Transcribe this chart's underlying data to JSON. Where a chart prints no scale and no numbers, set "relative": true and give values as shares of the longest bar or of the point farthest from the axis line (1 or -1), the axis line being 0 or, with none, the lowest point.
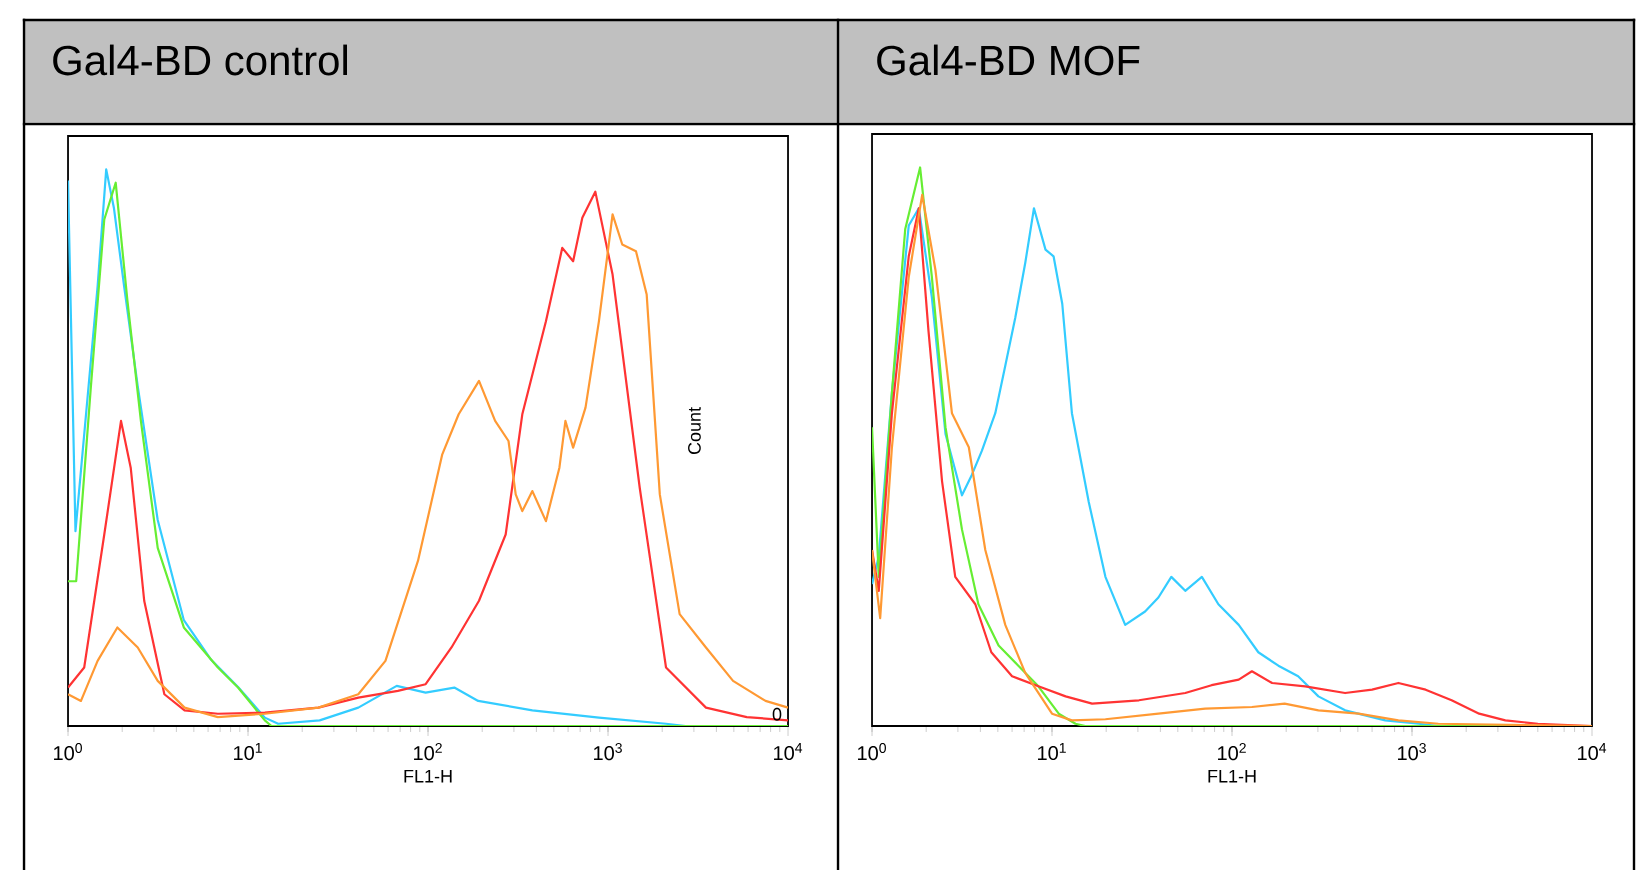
{
  "chart_data": [
    {
      "type": "line",
      "title": "Gal4-BD control",
      "xlabel": "FL1-H",
      "ylabel": "Count",
      "annotations": [
        "0"
      ],
      "relative": true,
      "log": "x",
      "xlim": [
        1,
        10000
      ],
      "xticks": [
        {
          "value": 1,
          "label": "10$^{0}$"
        },
        {
          "value": 10,
          "label": "10$^{1}$"
        },
        {
          "value": 100,
          "label": "10$^{2}$"
        },
        {
          "value": 1000,
          "label": "10$^{3}$"
        },
        {
          "value": 10000,
          "label": "10$^{4}$"
        }
      ],
      "series": [
        {
          "color": "#33ccff",
          "x": [
            1,
            1.1,
            1.46,
            1.63,
            1.8,
            2.05,
            2.44,
            3.15,
            4.4,
            6.2,
            8.8,
            12.4,
            14.7,
            25,
            41,
            67,
            97,
            140,
            190,
            380,
            890,
            2100,
            2700,
            10000
          ],
          "values": [
            0.98,
            0.35,
            0.79,
            1.0,
            0.93,
            0.79,
            0.61,
            0.37,
            0.19,
            0.12,
            0.07,
            0.015,
            0.004,
            0.01,
            0.033,
            0.072,
            0.06,
            0.069,
            0.045,
            0.028,
            0.015,
            0.004,
            0,
            0
          ]
        },
        {
          "color": "#66ee33",
          "x": [
            1,
            1.11,
            1.34,
            1.59,
            1.84,
            2.14,
            2.54,
            3.15,
            4.4,
            6.8,
            8.8,
            12.4,
            13.5,
            10000
          ],
          "values": [
            0.26,
            0.26,
            0.61,
            0.91,
            0.976,
            0.763,
            0.548,
            0.32,
            0.177,
            0.105,
            0.069,
            0.01,
            0,
            0
          ]
        },
        {
          "color": "#ff3333",
          "x": [
            1,
            1.23,
            1.59,
            1.97,
            2.23,
            2.65,
            3.43,
            4.44,
            6.8,
            12.4,
            24.6,
            41,
            68,
            97,
            135,
            192,
            270,
            334,
            452,
            557,
            640,
            720,
            850,
            1060,
            1500,
            2100,
            3500,
            5900,
            10000
          ],
          "values": [
            0.069,
            0.105,
            0.344,
            0.548,
            0.464,
            0.225,
            0.057,
            0.028,
            0.022,
            0.024,
            0.033,
            0.051,
            0.063,
            0.075,
            0.141,
            0.225,
            0.344,
            0.56,
            0.727,
            0.859,
            0.835,
            0.913,
            0.96,
            0.811,
            0.428,
            0.105,
            0.033,
            0.016,
            0.01
          ]
        },
        {
          "color": "#ff9933",
          "x": [
            1,
            1.18,
            1.46,
            1.88,
            2.44,
            3.15,
            4.44,
            6.8,
            12.4,
            24.6,
            41,
            58,
            88,
            120,
            148,
            192,
            236,
            280,
            307,
            334,
            380,
            452,
            537,
            580,
            640,
            750,
            890,
            1060,
            1200,
            1430,
            1640,
            1940,
            2500,
            3500,
            4950,
            7500,
            10000
          ],
          "values": [
            0.057,
            0.045,
            0.117,
            0.177,
            0.141,
            0.081,
            0.033,
            0.016,
            0.022,
            0.033,
            0.057,
            0.117,
            0.297,
            0.488,
            0.56,
            0.62,
            0.548,
            0.512,
            0.416,
            0.386,
            0.422,
            0.368,
            0.464,
            0.548,
            0.5,
            0.572,
            0.727,
            0.919,
            0.865,
            0.853,
            0.775,
            0.416,
            0.201,
            0.141,
            0.081,
            0.045,
            0.033
          ]
        }
      ]
    },
    {
      "type": "line",
      "title": "Gal4-BD MOF",
      "xlabel": "FL1-H",
      "relative": true,
      "log": "x",
      "xlim": [
        1,
        10000
      ],
      "xticks": [
        {
          "value": 1,
          "label": "10$^{0}$"
        },
        {
          "value": 10,
          "label": "10$^{1}$"
        },
        {
          "value": 100,
          "label": "10$^{2}$"
        },
        {
          "value": 1000,
          "label": "10$^{3}$"
        },
        {
          "value": 10000,
          "label": "10$^{4}$"
        }
      ],
      "series": [
        {
          "color": "#33ccff",
          "x": [
            1,
            1.09,
            1.29,
            1.6,
            1.82,
            2.15,
            2.56,
            3.16,
            3.59,
            4.08,
            4.84,
            5.5,
            6.25,
            7.1,
            7.94,
            9.2,
            10.2,
            11.4,
            12.9,
            16,
            19.8,
            25.5,
            32.9,
            39,
            46,
            55,
            68,
            84,
            109,
            140,
            181,
            233,
            302,
            425,
            710,
            1090,
            1400,
            10000
          ],
          "values": [
            0.254,
            0.303,
            0.597,
            0.896,
            0.927,
            0.768,
            0.523,
            0.413,
            0.45,
            0.493,
            0.56,
            0.645,
            0.731,
            0.829,
            0.927,
            0.853,
            0.841,
            0.756,
            0.56,
            0.401,
            0.267,
            0.181,
            0.205,
            0.23,
            0.267,
            0.242,
            0.267,
            0.218,
            0.181,
            0.132,
            0.108,
            0.089,
            0.053,
            0.028,
            0.01,
            0.004,
            0,
            0
          ]
        },
        {
          "color": "#66ee33",
          "x": [
            1,
            1.09,
            1.29,
            1.53,
            1.85,
            2.15,
            2.56,
            3.16,
            3.9,
            5.05,
            6.5,
            8.4,
            10.9,
            13.5,
            15.3,
            10000
          ],
          "values": [
            0.535,
            0.267,
            0.597,
            0.89,
            1.0,
            0.804,
            0.535,
            0.352,
            0.218,
            0.144,
            0.108,
            0.071,
            0.022,
            0.004,
            0,
            0
          ]
        },
        {
          "color": "#ff3333",
          "x": [
            1,
            1.09,
            1.29,
            1.6,
            1.82,
            2.06,
            2.45,
            2.9,
            3.75,
            4.6,
            6.0,
            8.4,
            11.9,
            16.7,
            30.4,
            55,
            77,
            109,
            129,
            167,
            255,
            425,
            600,
            840,
            1190,
            1660,
            2360,
            3300,
            5000,
            10000
          ],
          "values": [
            0.315,
            0.242,
            0.56,
            0.841,
            0.927,
            0.707,
            0.438,
            0.267,
            0.218,
            0.132,
            0.089,
            0.071,
            0.053,
            0.04,
            0.046,
            0.059,
            0.073,
            0.083,
            0.098,
            0.077,
            0.071,
            0.059,
            0.065,
            0.077,
            0.065,
            0.046,
            0.022,
            0.01,
            0.004,
            0
          ]
        },
        {
          "color": "#ff9933",
          "x": [
            1,
            1.11,
            1.29,
            1.6,
            1.9,
            2.25,
            2.78,
            3.45,
            4.26,
            5.5,
            7.1,
            10,
            12.9,
            19.8,
            39,
            71,
            129,
            196,
            302,
            505,
            840,
            1400,
            10000
          ],
          "values": [
            0.315,
            0.193,
            0.499,
            0.804,
            0.951,
            0.817,
            0.56,
            0.499,
            0.315,
            0.181,
            0.095,
            0.022,
            0.01,
            0.012,
            0.022,
            0.031,
            0.034,
            0.04,
            0.028,
            0.022,
            0.01,
            0.004,
            0
          ]
        }
      ]
    }
  ]
}
